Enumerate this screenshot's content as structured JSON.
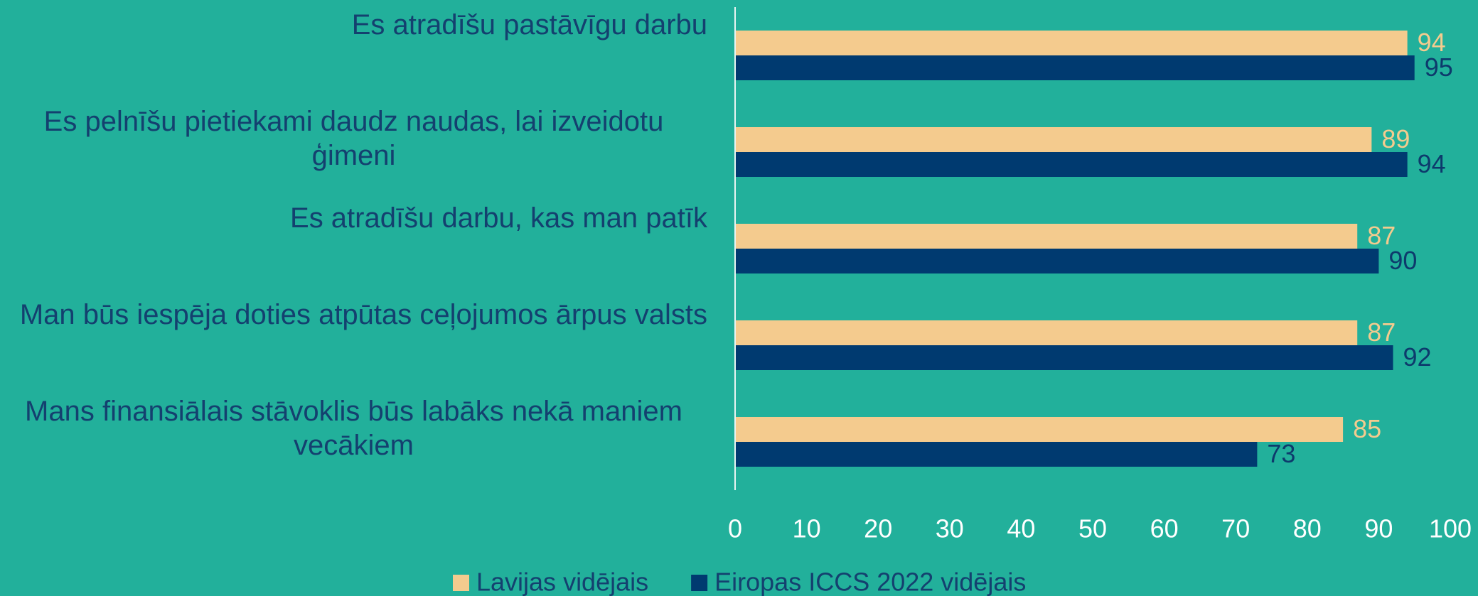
{
  "chart_data": {
    "type": "hbar",
    "categories": [
      "Es atradīšu pastāvīgu darbu",
      "Es pelnīšu pietiekami daudz naudas, lai izveidotu ģimeni",
      "Es atradīšu darbu, kas man patīk",
      "Man būs iespēja doties atpūtas ceļojumos ārpus valsts",
      "Mans finansiālais stāvoklis būs labāks nekā maniem vecākiem"
    ],
    "series": [
      {
        "name": "Lavijas vidējais",
        "color": "#f4cb8e",
        "values": [
          94,
          89,
          87,
          87,
          85
        ]
      },
      {
        "name": "Eiropas ICCS 2022 vidējais",
        "color": "#003a70",
        "values": [
          95,
          94,
          90,
          92,
          73
        ]
      }
    ],
    "xlim": [
      0,
      100
    ],
    "xticks": [
      0,
      10,
      20,
      30,
      40,
      50,
      60,
      70,
      80,
      90,
      100
    ],
    "legend": "bottom"
  }
}
